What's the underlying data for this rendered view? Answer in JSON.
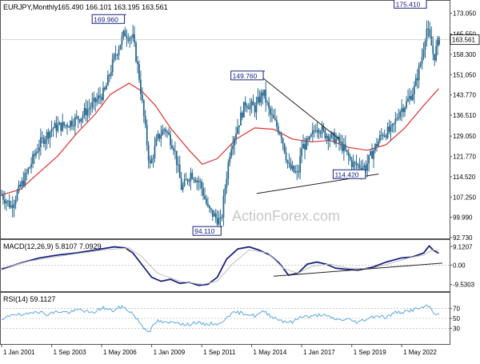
{
  "header": {
    "symbol_text": "EURJPY,Monthly",
    "ohlc_text": "165.490 166.101 163.195 163.561"
  },
  "watermark": "ActionForex.com",
  "colors": {
    "candle": "#2b6a8f",
    "ma": "#e03030",
    "macd": "#1a237e",
    "signal": "#c0c0c0",
    "rsi": "#5aa8e0",
    "trendline": "#222222",
    "label_border": "#1a237e",
    "last_price_bg": "#ffffff"
  },
  "chart_data": [
    {
      "type": "candlestick",
      "panel": "price",
      "title": "EURJPY,Monthly",
      "ylim": [
        92.73,
        177.2
      ],
      "y_ticks": [
        "173.050",
        "165.550",
        "158.300",
        "151.050",
        "143.770",
        "136.510",
        "129.050",
        "121.770",
        "114.520",
        "107.250",
        "99.990",
        "92.730"
      ],
      "x_ticks": [
        "1 Jan 2001",
        "1 Sep 2003",
        "1 May 2006",
        "1 Jan 2009",
        "1 Sep 2011",
        "1 May 2014",
        "1 Jan 2017",
        "1 Sep 2019",
        "1 May 2022"
      ],
      "last_price_label": "163.561",
      "last_price": 163.561,
      "annotations": [
        {
          "text": "169.960",
          "t": 2007.55,
          "value": 169.96
        },
        {
          "text": "94.110",
          "t": 2012.7,
          "value": 94.11
        },
        {
          "text": "149.760",
          "t": 2014.95,
          "value": 149.76
        },
        {
          "text": "114.420",
          "t": 2020.4,
          "value": 114.42
        },
        {
          "text": "175.410",
          "t": 2023.65,
          "value": 175.41
        }
      ],
      "trendlines": [
        {
          "from": {
            "t": 2014.95,
            "value": 149.76
          },
          "to": {
            "t": 2019.0,
            "value": 128.0
          }
        },
        {
          "from": {
            "t": 2014.6,
            "value": 108.5
          },
          "to": {
            "t": 2021.1,
            "value": 115.5
          }
        }
      ],
      "close_path": [
        [
          2001.0,
          108.0
        ],
        [
          2001.5,
          104.0
        ],
        [
          2002.3,
          115.0
        ],
        [
          2003.0,
          126.0
        ],
        [
          2003.7,
          132.0
        ],
        [
          2004.4,
          133.0
        ],
        [
          2005.2,
          136.0
        ],
        [
          2005.8,
          140.0
        ],
        [
          2006.5,
          145.0
        ],
        [
          2007.0,
          157.0
        ],
        [
          2007.55,
          166.0
        ],
        [
          2008.0,
          164.0
        ],
        [
          2008.3,
          152.0
        ],
        [
          2008.6,
          135.0
        ],
        [
          2008.9,
          118.0
        ],
        [
          2009.3,
          128.0
        ],
        [
          2009.7,
          132.0
        ],
        [
          2010.2,
          125.0
        ],
        [
          2010.6,
          110.0
        ],
        [
          2011.1,
          116.0
        ],
        [
          2011.6,
          112.0
        ],
        [
          2012.0,
          103.0
        ],
        [
          2012.4,
          100.0
        ],
        [
          2012.7,
          98.0
        ],
        [
          2012.9,
          110.0
        ],
        [
          2013.2,
          125.0
        ],
        [
          2013.6,
          133.0
        ],
        [
          2014.0,
          141.0
        ],
        [
          2014.5,
          139.0
        ],
        [
          2014.95,
          145.0
        ],
        [
          2015.3,
          137.0
        ],
        [
          2015.9,
          130.0
        ],
        [
          2016.3,
          118.0
        ],
        [
          2016.8,
          115.0
        ],
        [
          2017.0,
          125.0
        ],
        [
          2017.4,
          127.0
        ],
        [
          2017.8,
          133.0
        ],
        [
          2018.2,
          130.0
        ],
        [
          2018.8,
          128.0
        ],
        [
          2019.2,
          125.0
        ],
        [
          2019.7,
          119.0
        ],
        [
          2020.4,
          118.0
        ],
        [
          2020.9,
          125.0
        ],
        [
          2021.3,
          130.0
        ],
        [
          2021.8,
          131.0
        ],
        [
          2022.2,
          138.0
        ],
        [
          2022.6,
          141.0
        ],
        [
          2023.0,
          146.0
        ],
        [
          2023.4,
          157.0
        ],
        [
          2023.65,
          168.0
        ],
        [
          2023.9,
          162.0
        ],
        [
          2024.05,
          157.0
        ],
        [
          2024.3,
          163.561
        ]
      ],
      "ma_series": {
        "values": [
          [
            2001.0,
            108.0
          ],
          [
            2002.0,
            110.0
          ],
          [
            2003.0,
            116.0
          ],
          [
            2004.0,
            122.0
          ],
          [
            2005.0,
            130.0
          ],
          [
            2006.0,
            137.0
          ],
          [
            2006.8,
            144.0
          ],
          [
            2007.8,
            148.0
          ],
          [
            2008.5,
            145.0
          ],
          [
            2009.2,
            140.0
          ],
          [
            2010.0,
            132.0
          ],
          [
            2011.0,
            124.0
          ],
          [
            2011.7,
            119.0
          ],
          [
            2012.5,
            121.0
          ],
          [
            2013.5,
            128.0
          ],
          [
            2014.5,
            132.0
          ],
          [
            2015.5,
            131.5
          ],
          [
            2016.5,
            128.0
          ],
          [
            2017.5,
            127.0
          ],
          [
            2018.5,
            127.5
          ],
          [
            2019.5,
            125.0
          ],
          [
            2020.5,
            124.0
          ],
          [
            2021.5,
            126.0
          ],
          [
            2022.5,
            132.0
          ],
          [
            2023.5,
            140.0
          ],
          [
            2024.3,
            146.0
          ]
        ]
      }
    },
    {
      "type": "line",
      "panel": "macd",
      "title": "MACD(12,26,9) 5.8107 7.0929",
      "ylim": [
        -12.5,
        12.0
      ],
      "y_ticks": [
        "9.1207",
        "0.00",
        "-9.5303"
      ],
      "zero_line": 0,
      "trendline": {
        "from": {
          "t": 2015.5,
          "value": -5.5
        },
        "to": {
          "t": 2024.5,
          "value": 1.0
        }
      },
      "series": [
        {
          "role": "macd",
          "values": [
            [
              2001.0,
              -2.0
            ],
            [
              2002.0,
              1.0
            ],
            [
              2003.0,
              3.5
            ],
            [
              2004.0,
              5.0
            ],
            [
              2005.0,
              6.0
            ],
            [
              2006.0,
              7.5
            ],
            [
              2007.0,
              9.0
            ],
            [
              2007.6,
              8.5
            ],
            [
              2008.0,
              6.0
            ],
            [
              2008.5,
              0.0
            ],
            [
              2009.0,
              -6.0
            ],
            [
              2009.5,
              -8.0
            ],
            [
              2010.0,
              -7.0
            ],
            [
              2010.5,
              -9.0
            ],
            [
              2011.0,
              -8.5
            ],
            [
              2011.5,
              -10.0
            ],
            [
              2012.0,
              -9.5
            ],
            [
              2012.5,
              -6.0
            ],
            [
              2013.0,
              3.0
            ],
            [
              2013.6,
              8.0
            ],
            [
              2014.2,
              9.0
            ],
            [
              2014.7,
              7.5
            ],
            [
              2015.3,
              5.0
            ],
            [
              2015.8,
              1.0
            ],
            [
              2016.3,
              -5.0
            ],
            [
              2016.8,
              -4.0
            ],
            [
              2017.3,
              0.5
            ],
            [
              2017.8,
              1.5
            ],
            [
              2018.3,
              0.5
            ],
            [
              2018.8,
              -1.5
            ],
            [
              2019.3,
              -2.0
            ],
            [
              2020.0,
              -2.5
            ],
            [
              2020.8,
              -1.0
            ],
            [
              2021.5,
              1.5
            ],
            [
              2022.3,
              3.5
            ],
            [
              2022.9,
              4.0
            ],
            [
              2023.5,
              6.0
            ],
            [
              2023.8,
              9.5
            ],
            [
              2024.0,
              7.5
            ],
            [
              2024.3,
              5.8107
            ]
          ]
        },
        {
          "role": "signal",
          "values": [
            [
              2001.0,
              -1.5
            ],
            [
              2002.5,
              2.0
            ],
            [
              2004.5,
              5.0
            ],
            [
              2006.5,
              7.5
            ],
            [
              2007.8,
              8.5
            ],
            [
              2008.5,
              4.0
            ],
            [
              2009.3,
              -4.0
            ],
            [
              2010.5,
              -8.0
            ],
            [
              2011.7,
              -9.5
            ],
            [
              2012.5,
              -8.0
            ],
            [
              2013.3,
              0.5
            ],
            [
              2014.2,
              7.5
            ],
            [
              2015.2,
              6.0
            ],
            [
              2016.0,
              -1.5
            ],
            [
              2016.8,
              -4.0
            ],
            [
              2017.6,
              -0.5
            ],
            [
              2018.5,
              0.5
            ],
            [
              2019.5,
              -1.5
            ],
            [
              2020.7,
              -1.8
            ],
            [
              2021.7,
              0.8
            ],
            [
              2022.7,
              3.5
            ],
            [
              2023.5,
              5.0
            ],
            [
              2024.0,
              7.5
            ],
            [
              2024.3,
              7.0929
            ]
          ]
        }
      ]
    },
    {
      "type": "line",
      "panel": "rsi",
      "title": "RSI(14) 59.1127",
      "ylim": [
        0,
        100
      ],
      "y_ticks": [
        "70",
        "50",
        "30"
      ],
      "levels": [
        70,
        50,
        30
      ],
      "series": [
        {
          "role": "rsi",
          "values": [
            [
              2001.0,
              45.0
            ],
            [
              2001.6,
              60.0
            ],
            [
              2002.2,
              55.0
            ],
            [
              2002.8,
              66.0
            ],
            [
              2003.4,
              58.0
            ],
            [
              2004.0,
              64.0
            ],
            [
              2004.6,
              62.0
            ],
            [
              2005.2,
              68.0
            ],
            [
              2005.8,
              60.0
            ],
            [
              2006.4,
              72.0
            ],
            [
              2006.9,
              65.0
            ],
            [
              2007.4,
              74.0
            ],
            [
              2007.9,
              63.0
            ],
            [
              2008.3,
              45.0
            ],
            [
              2008.6,
              30.0
            ],
            [
              2008.9,
              25.0
            ],
            [
              2009.3,
              45.0
            ],
            [
              2009.8,
              40.0
            ],
            [
              2010.3,
              44.0
            ],
            [
              2010.8,
              36.0
            ],
            [
              2011.3,
              42.0
            ],
            [
              2011.8,
              38.0
            ],
            [
              2012.3,
              40.0
            ],
            [
              2012.7,
              38.0
            ],
            [
              2013.0,
              55.0
            ],
            [
              2013.5,
              62.0
            ],
            [
              2014.0,
              60.0
            ],
            [
              2014.5,
              55.0
            ],
            [
              2015.0,
              64.0
            ],
            [
              2015.5,
              52.0
            ],
            [
              2016.0,
              45.0
            ],
            [
              2016.5,
              42.0
            ],
            [
              2017.0,
              55.0
            ],
            [
              2017.5,
              53.0
            ],
            [
              2018.0,
              58.0
            ],
            [
              2018.5,
              52.0
            ],
            [
              2019.0,
              47.0
            ],
            [
              2019.5,
              48.0
            ],
            [
              2020.0,
              42.0
            ],
            [
              2020.5,
              50.0
            ],
            [
              2021.0,
              56.0
            ],
            [
              2021.5,
              52.0
            ],
            [
              2022.0,
              62.0
            ],
            [
              2022.5,
              63.0
            ],
            [
              2023.0,
              68.0
            ],
            [
              2023.5,
              72.0
            ],
            [
              2023.8,
              75.0
            ],
            [
              2024.0,
              62.0
            ],
            [
              2024.3,
              59.1127
            ]
          ]
        }
      ]
    }
  ]
}
